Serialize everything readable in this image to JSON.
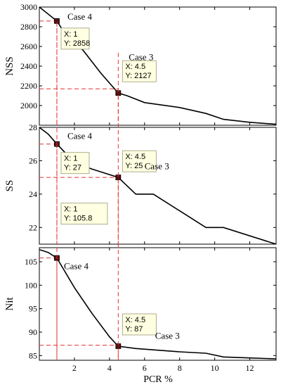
{
  "xlabel": "PCR %",
  "colors": {
    "line": "#000000",
    "guide": "#e8312e",
    "datatip_bg": "#ffffe1",
    "datatip_border": "#9a9a7a"
  },
  "chart_data": [
    {
      "type": "line",
      "ylabel": "NSS",
      "xlim": [
        0,
        13.5
      ],
      "ylim": [
        1800,
        3000
      ],
      "xticks": [
        2,
        4,
        6,
        8,
        10,
        12
      ],
      "yticks": [
        2000,
        2200,
        2400,
        2600,
        2800,
        3000
      ],
      "x": [
        0,
        1,
        1.5,
        2.5,
        3.5,
        4.5,
        5,
        6,
        8,
        9.5,
        10.5,
        12,
        13.5
      ],
      "y": [
        3000,
        2858,
        2720,
        2560,
        2330,
        2127,
        2100,
        2030,
        1980,
        1920,
        1860,
        1830,
        1810
      ],
      "guides": [
        {
          "x": 1,
          "y": 2858
        },
        {
          "x": 4.5,
          "y": 2170
        }
      ],
      "datatips": [
        {
          "x": 1,
          "y": 2858,
          "line1": "X: 1",
          "line2": "Y: 2858"
        },
        {
          "x": 4.5,
          "y": 2127,
          "line1": "X: 4.5",
          "line2": "Y: 2127"
        }
      ],
      "annotations": [
        {
          "text": "Case 4",
          "x": 1.6,
          "y": 2870
        },
        {
          "text": "Case 3",
          "x": 5.1,
          "y": 2460
        }
      ]
    },
    {
      "type": "line",
      "ylabel": "SS",
      "xlim": [
        0,
        13.5
      ],
      "ylim": [
        21,
        28
      ],
      "xticks": [
        2,
        4,
        6,
        8,
        10,
        12
      ],
      "yticks": [
        22,
        24,
        26,
        28
      ],
      "x": [
        0,
        0.5,
        1,
        2,
        3,
        4.5,
        5.5,
        6.5,
        8,
        9.5,
        10.5,
        13.5
      ],
      "y": [
        28,
        27.6,
        27,
        25.9,
        25.5,
        25,
        24,
        24,
        23,
        22,
        22,
        21
      ],
      "guides": [
        {
          "x": 1,
          "y": 27
        },
        {
          "x": 4.5,
          "y": 25
        }
      ],
      "datatips": [
        {
          "x": 1,
          "y": 27,
          "line1": "X: 1",
          "line2": "Y: 27"
        },
        {
          "x": 4.5,
          "y": 25,
          "line1": "X: 4.5",
          "line2": "Y: 25"
        }
      ],
      "annotations": [
        {
          "text": "Case 4",
          "x": 1.6,
          "y": 27.3
        },
        {
          "text": "Case 3",
          "x": 6.0,
          "y": 25.5
        }
      ]
    },
    {
      "type": "line",
      "ylabel": "Nit",
      "xlim": [
        0,
        13.5
      ],
      "ylim": [
        84,
        108
      ],
      "xticks": [
        2,
        4,
        6,
        8,
        10,
        12
      ],
      "yticks": [
        85,
        90,
        95,
        100,
        105
      ],
      "xticklabels": [
        "2",
        "4",
        "6",
        "8",
        "10",
        "12"
      ],
      "x": [
        0,
        0.5,
        1,
        2,
        3,
        4,
        4.5,
        5.5,
        8,
        9.5,
        10.5,
        12,
        13.5
      ],
      "y": [
        107.6,
        107,
        105.8,
        99.5,
        94,
        89,
        87,
        86.5,
        85.8,
        85.5,
        84.7,
        84.5,
        84.3
      ],
      "guides": [
        {
          "x": 1,
          "y": 105.8
        },
        {
          "x": 4.5,
          "y": 87.2
        }
      ],
      "datatips": [
        {
          "x": 1,
          "y": 105.8,
          "line1": "X: 1",
          "line2": "Y: 105.8"
        },
        {
          "x": 4.5,
          "y": 87,
          "line1": "X: 4.5",
          "line2": "Y: 87"
        }
      ],
      "annotations": [
        {
          "text": "Case 4",
          "x": 1.4,
          "y": 103.4
        },
        {
          "text": "Case 3",
          "x": 6.6,
          "y": 88.6
        }
      ]
    }
  ]
}
